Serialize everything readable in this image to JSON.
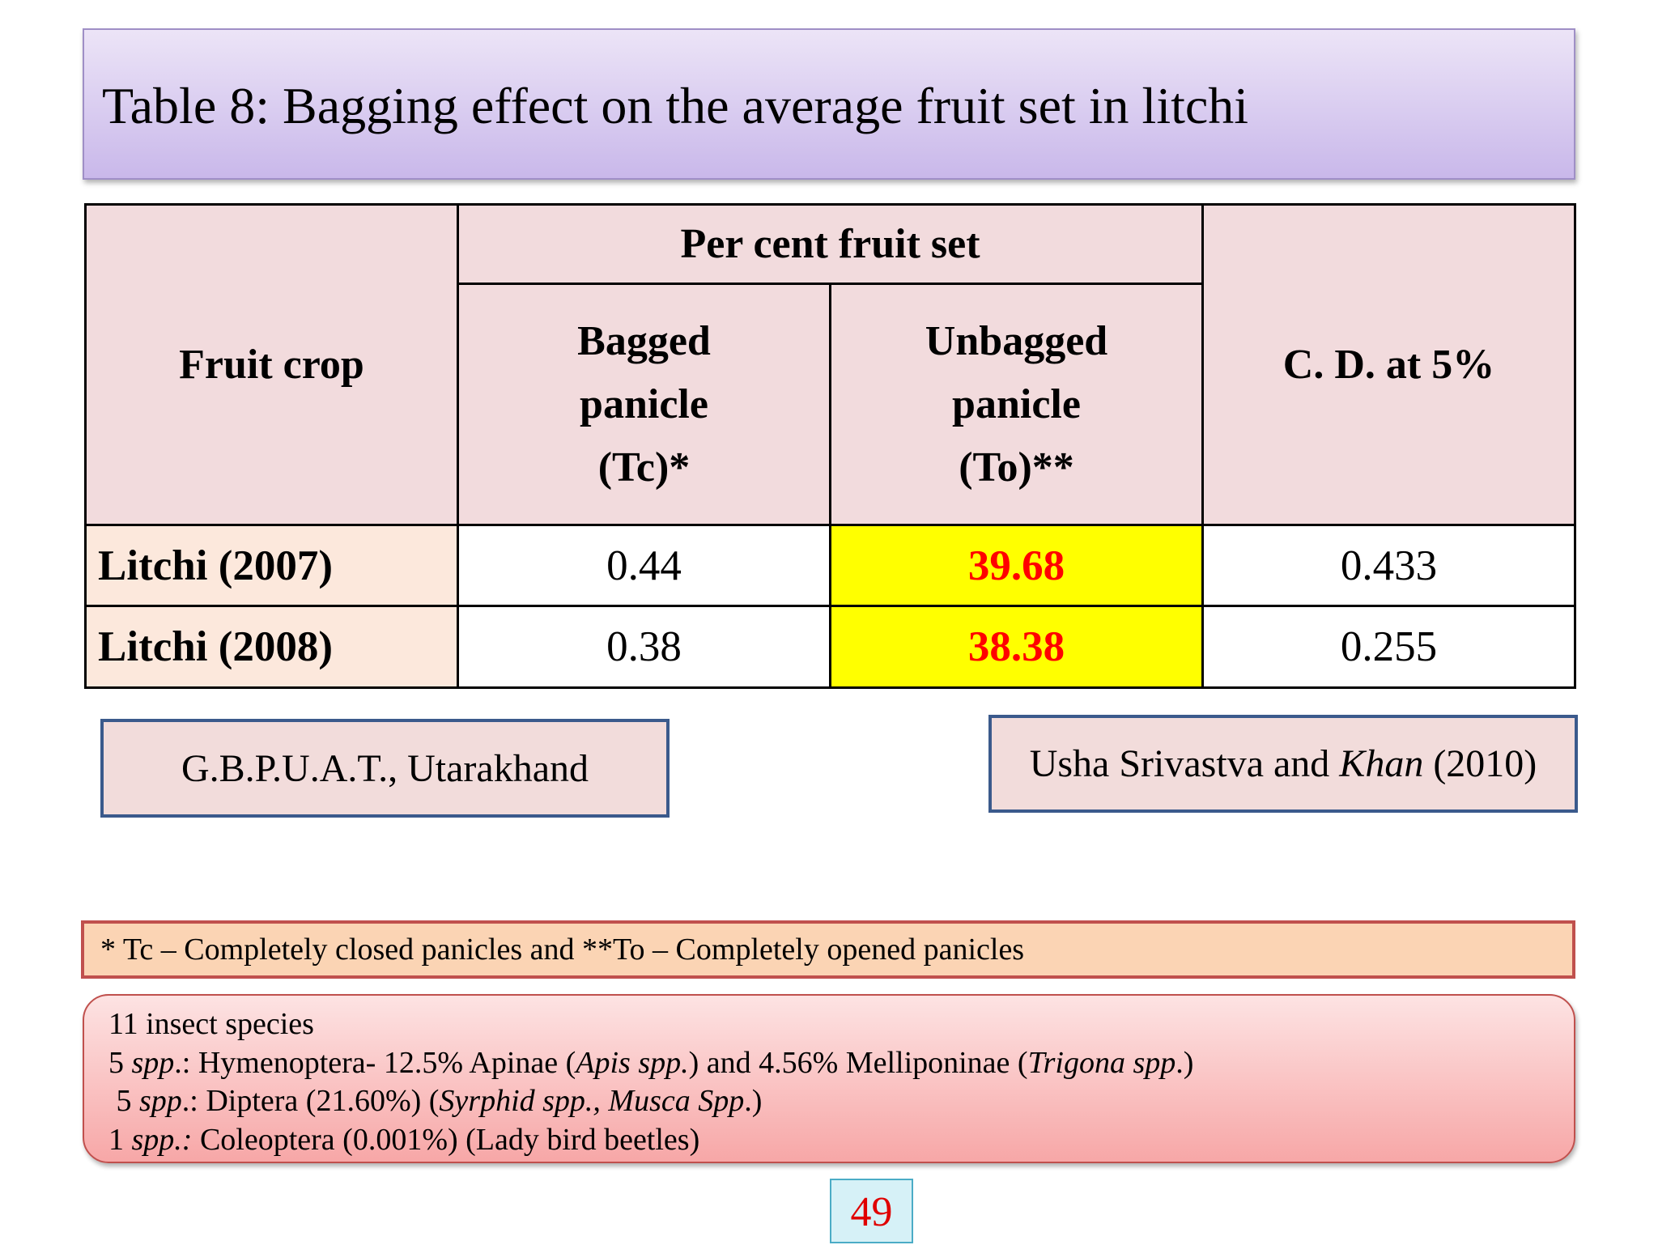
{
  "header": {
    "title": "Table 8: Bagging effect on the average fruit set in litchi"
  },
  "table": {
    "header": {
      "crop": "Fruit crop",
      "group": "Per cent fruit set",
      "bagged": [
        "Bagged",
        "panicle",
        "(Tc)*"
      ],
      "unbagged": [
        "Unbagged",
        "panicle",
        "(To)**"
      ],
      "cd": "C. D. at 5%"
    },
    "rows": [
      [
        "Litchi (2007)",
        "0.44",
        "39.68",
        "0.433"
      ],
      [
        "Litchi (2008)",
        "0.38",
        "38.38",
        "0.255"
      ]
    ]
  },
  "source": {
    "institute": "G.B.P.U.A.T., Utarakhand",
    "citation": [
      "Usha Srivastva and ",
      "Khan",
      " (2010)"
    ]
  },
  "footnote": "* Tc – Completely closed panicles and **To – Completely opened panicles",
  "insects": {
    "lines": [
      [
        "11 insect species"
      ],
      [
        "5 ",
        "spp",
        ".: Hymenoptera- 12.5% Apinae (",
        "Apis spp.",
        ") and 4.56% Melliponinae (",
        "Trigona spp",
        ".)"
      ],
      [
        " 5 ",
        "spp",
        ".: Diptera (21.60%) (",
        "Syrphid spp., Musca Spp",
        ".)"
      ],
      [
        "1 ",
        "spp.:",
        " Coleoptera (0.001%) (Lady bird beetles)"
      ]
    ]
  },
  "page_number": "49"
}
